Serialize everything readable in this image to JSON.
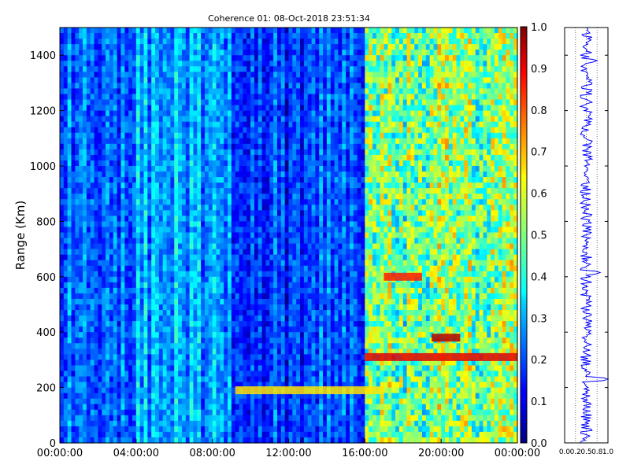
{
  "chart_data": [
    {
      "type": "heatmap",
      "title": "Coherence 01: 08-Oct-2018 23:51:34",
      "xlabel": "",
      "ylabel": "Range (Km)",
      "x_ticks": [
        "00:00:00",
        "04:00:00",
        "08:00:00",
        "12:00:00",
        "16:00:00",
        "20:00:00",
        "00:00:00"
      ],
      "xlim_hours": [
        0,
        24
      ],
      "y_ticks": [
        0,
        200,
        400,
        600,
        800,
        1000,
        1200,
        1400
      ],
      "ylim": [
        0,
        1500
      ],
      "colormap": "jet",
      "color_range": [
        0.0,
        1.0
      ],
      "colorbar_ticks": [
        "0.0",
        "0.1",
        "0.2",
        "0.3",
        "0.4",
        "0.5",
        "0.6",
        "0.7",
        "0.8",
        "0.9",
        "1.0"
      ],
      "regions": [
        {
          "hours": [
            0,
            4
          ],
          "typical_value": 0.18
        },
        {
          "hours": [
            4,
            9
          ],
          "typical_value": 0.25
        },
        {
          "hours": [
            9,
            16
          ],
          "typical_value": 0.15
        },
        {
          "hours": [
            16,
            24
          ],
          "typical_value": 0.5
        }
      ],
      "features": [
        {
          "range_km": 190,
          "hours": [
            9.2,
            17
          ],
          "value": 0.65
        },
        {
          "range_km": 310,
          "hours": [
            16,
            24
          ],
          "value": 0.9
        },
        {
          "range_km": 600,
          "hours": [
            17,
            19
          ],
          "value": 0.85
        },
        {
          "range_km": 380,
          "hours": [
            19.5,
            21
          ],
          "value": 0.95
        }
      ]
    },
    {
      "type": "line",
      "xlabel": "",
      "ylabel": "",
      "x_ticks": [
        "0.0",
        "0.2",
        "0.5",
        "0.8",
        "1.0"
      ],
      "xlim": [
        0,
        1
      ],
      "ylim": [
        0,
        1500
      ],
      "grid": true,
      "mean_value": 0.5,
      "spikes": [
        {
          "range_km": 230,
          "value": 1.0
        },
        {
          "range_km": 615,
          "value": 0.82
        },
        {
          "range_km": 1380,
          "value": 0.75
        }
      ],
      "line_color": "#0000ff"
    }
  ]
}
